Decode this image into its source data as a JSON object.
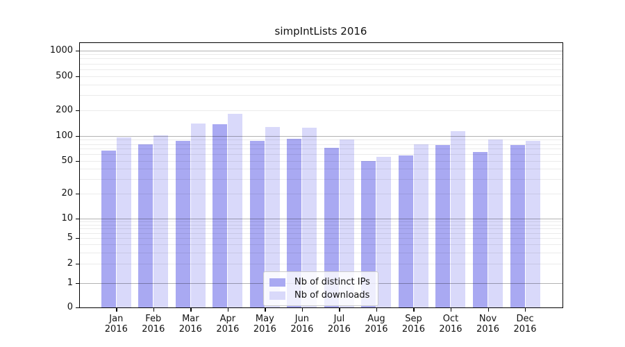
{
  "chart_data": {
    "type": "bar",
    "title": "simpIntLists 2016",
    "categories": [
      "Jan",
      "Feb",
      "Mar",
      "Apr",
      "May",
      "Jun",
      "Jul",
      "Aug",
      "Sep",
      "Oct",
      "Nov",
      "Dec"
    ],
    "year_label": "2016",
    "series": [
      {
        "name": "Nb of distinct IPs",
        "color": "#a9a9f2",
        "values": [
          66,
          80,
          88,
          137,
          88,
          93,
          72,
          50,
          58,
          78,
          64,
          78
        ]
      },
      {
        "name": "Nb of downloads",
        "color": "#d9d9fa",
        "values": [
          96,
          101,
          141,
          183,
          127,
          124,
          90,
          56,
          80,
          113,
          90,
          88
        ]
      }
    ],
    "xlabel": "",
    "ylabel": "",
    "yscale": "symlog",
    "yticks": [
      0,
      1,
      2,
      5,
      10,
      20,
      50,
      100,
      200,
      500,
      1000
    ],
    "ylim": [
      0,
      1250
    ],
    "grid": true,
    "legend_position": "lower center",
    "colors": {
      "major_grid": "rgba(0,0,0,0.30)",
      "minor_grid": "rgba(0,0,0,0.08)",
      "spine": "#000000",
      "text": "#111111",
      "background": "#ffffff"
    }
  }
}
